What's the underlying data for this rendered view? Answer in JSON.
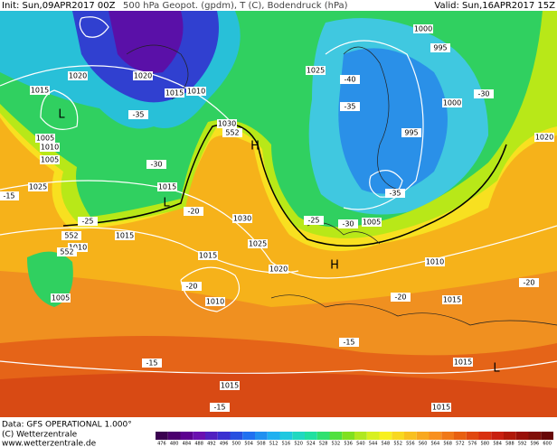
{
  "header": {
    "init": "Init: Sun,09APR2017 00Z",
    "title": "500 hPa Geopot. (gpdm), T (C), Bodendruck (hPa)",
    "valid": "Valid: Sun,16APR2017 15Z"
  },
  "map_labels": [
    "1000",
    "995",
    "1025",
    "1020",
    "1020",
    "1015",
    "1015",
    "1010",
    "L",
    "1000",
    "1030",
    "552",
    "H",
    "995",
    "1005",
    "1010",
    "1005",
    "1025",
    "1015",
    "L",
    "1030",
    "1005",
    "1010",
    "1015",
    "552",
    "1025",
    "552",
    "H",
    "1020",
    "1015",
    "1010",
    "1005",
    "1010",
    "1015",
    "-20",
    "-20",
    "-15",
    "-20",
    "-15",
    "1015",
    "L",
    "1015",
    "1015",
    "-15",
    "-15",
    "1020",
    "-35",
    "-30",
    "-25",
    "-20",
    "-35",
    "-30",
    "-25",
    "-30",
    "-40",
    "-35"
  ],
  "footer": {
    "data": "Data: GFS OPERATIONAL 1.000°",
    "copyright": "(C) Wetterzentrale",
    "url": "www.wetterzentrale.de"
  },
  "scale": {
    "labels": [
      476,
      480,
      484,
      488,
      492,
      496,
      500,
      504,
      508,
      512,
      516,
      520,
      524,
      528,
      532,
      536,
      540,
      544,
      548,
      552,
      556,
      560,
      564,
      568,
      572,
      576,
      580,
      584,
      588,
      592,
      596,
      600
    ],
    "colors": [
      "#3a0050",
      "#4b006e",
      "#5c0090",
      "#6a10b0",
      "#5020c0",
      "#3a30d0",
      "#2850e0",
      "#2070f0",
      "#2090f0",
      "#20b0f0",
      "#20c8e0",
      "#20d8c0",
      "#20e0a0",
      "#30e070",
      "#50e040",
      "#80e020",
      "#b0e820",
      "#d8f020",
      "#f8f020",
      "#f8d820",
      "#f8c020",
      "#f8a820",
      "#f89020",
      "#f07818",
      "#e86010",
      "#e04810",
      "#d83010",
      "#c82010",
      "#b01808",
      "#981008",
      "#801008",
      "#680808"
    ]
  }
}
